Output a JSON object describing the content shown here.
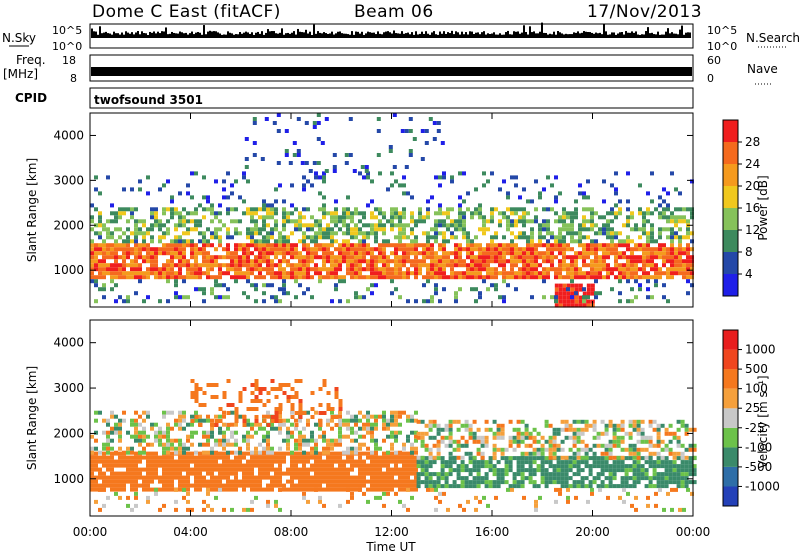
{
  "header": {
    "station": "Dome C East (fitACF)",
    "beam": "Beam 06",
    "date": "17/Nov/2013"
  },
  "housekeeping": {
    "nsky_label": "N.Sky",
    "nsky_ticks": [
      "10^5",
      "10^0"
    ],
    "nsearch_label": "N.Search",
    "nsearch_ticks": [
      "10^5",
      "10^0"
    ],
    "freq_label": "Freq.",
    "freq_unit": "[MHz]",
    "freq_ticks": [
      "18",
      "8"
    ],
    "nave_label": "Nave",
    "nave_ticks": [
      "60",
      "0"
    ],
    "cpid_label": "CPID",
    "cpid_value": "twofsound 3501"
  },
  "axes": {
    "xlabel": "Time UT",
    "ylabel_upper": "Slant Range [km]",
    "ylabel_lower": "Slant Range [km]",
    "x_ticks": [
      "00:00",
      "04:00",
      "08:00",
      "12:00",
      "16:00",
      "20:00",
      "00:00"
    ],
    "y_ticks": [
      "1000",
      "2000",
      "3000",
      "4000"
    ]
  },
  "colorbars": {
    "power": {
      "label": "Power [dB]",
      "ticks": [
        "4",
        "8",
        "12",
        "16",
        "20",
        "24",
        "28"
      ],
      "colors": [
        "#1f1fe8",
        "#2448a8",
        "#3d8a5e",
        "#86c25a",
        "#f0c81e",
        "#f59a1e",
        "#f56a1e",
        "#f01e1e"
      ]
    },
    "velocity": {
      "label": "Velocity [m s⁻¹]",
      "ticks": [
        "1000",
        "500",
        "100",
        "25",
        "-25",
        "-100",
        "-500",
        "-1000"
      ],
      "colors": [
        "#2441b8",
        "#2e6ea8",
        "#3a8a6a",
        "#6cc24a",
        "#c8c8c8",
        "#f5a03c",
        "#f5781e",
        "#f0461e",
        "#e81e1e"
      ]
    }
  },
  "chart_data": [
    {
      "type": "heatmap",
      "title": "Power [dB]",
      "xlabel": "Time UT",
      "ylabel": "Slant Range [km]",
      "xlim": [
        "00:00",
        "24:00"
      ],
      "ylim": [
        180,
        4500
      ],
      "clim": [
        0,
        30
      ],
      "bands": [
        {
          "t0": 0,
          "t1": 24,
          "r0": 800,
          "r1": 1600,
          "dB": 24,
          "density": 0.85
        },
        {
          "t0": 0,
          "t1": 24,
          "r0": 1600,
          "r1": 2400,
          "dB": 12,
          "density": 0.55
        },
        {
          "t0": 0,
          "t1": 24,
          "r0": 2400,
          "r1": 3200,
          "dB": 6,
          "density": 0.12
        },
        {
          "t0": 6,
          "t1": 14,
          "r0": 3200,
          "r1": 4500,
          "dB": 5,
          "density": 0.08
        },
        {
          "t0": 18.5,
          "t1": 20,
          "r0": 200,
          "r1": 700,
          "dB": 30,
          "density": 0.9
        },
        {
          "t0": 0,
          "t1": 24,
          "r0": 300,
          "r1": 800,
          "dB": 8,
          "density": 0.2
        }
      ]
    },
    {
      "type": "heatmap",
      "title": "Velocity [m s⁻¹]",
      "xlabel": "Time UT",
      "ylabel": "Slant Range [km]",
      "xlim": [
        "00:00",
        "24:00"
      ],
      "ylim": [
        180,
        4500
      ],
      "clim": [
        -1000,
        1000
      ],
      "bands": [
        {
          "t0": 0,
          "t1": 13,
          "r0": 800,
          "r1": 1600,
          "v": -300,
          "density": 0.85
        },
        {
          "t0": 0,
          "t1": 13,
          "r0": 1600,
          "r1": 2500,
          "v": 0,
          "density": 0.5
        },
        {
          "t0": 13,
          "t1": 24,
          "r0": 800,
          "r1": 1500,
          "v": 200,
          "density": 0.75
        },
        {
          "t0": 13,
          "t1": 24,
          "r0": 1500,
          "r1": 2300,
          "v": 0,
          "density": 0.5
        },
        {
          "t0": 4,
          "t1": 10,
          "r0": 2200,
          "r1": 3200,
          "v": -400,
          "density": 0.25
        },
        {
          "t0": 0,
          "t1": 24,
          "r0": 300,
          "r1": 800,
          "v": -60,
          "density": 0.12
        }
      ]
    }
  ]
}
